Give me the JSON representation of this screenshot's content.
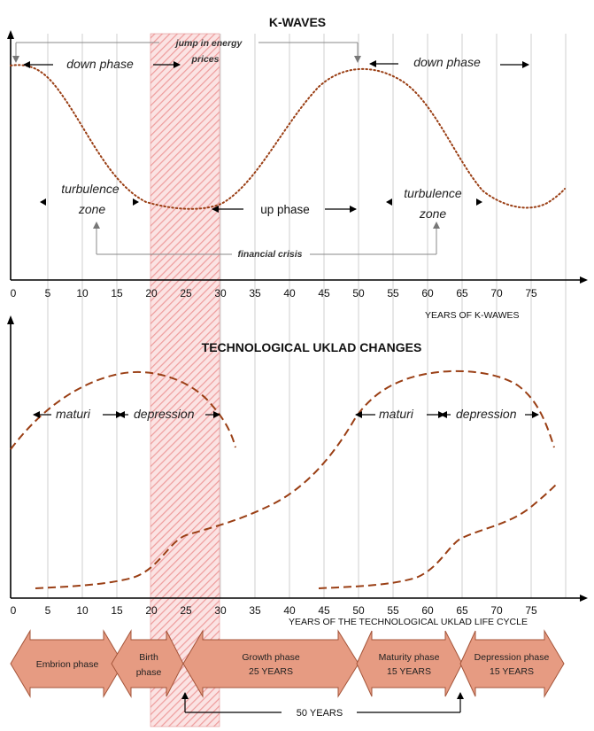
{
  "top": {
    "title": "K-WAVES",
    "x_ticks": [
      "0",
      "5",
      "10",
      "15",
      "20",
      "25",
      "30",
      "35",
      "40",
      "45",
      "50",
      "55",
      "60",
      "65",
      "70",
      "75"
    ],
    "x_axis_label": "YEARS OF K-WAWES",
    "jump_label_line1": "jump in energy",
    "jump_label_line2": "prices",
    "down_phase_left": "down phase",
    "down_phase_right": "down phase",
    "turbulence_left_line1": "turbulence",
    "turbulence_left_line2": "zone",
    "turbulence_right_line1": "turbulence",
    "turbulence_right_line2": "zone",
    "up_phase": "up phase",
    "financial_crisis": "financial crisis"
  },
  "bottom": {
    "title": "TECHNOLOGICAL UKLAD CHANGES",
    "x_ticks": [
      "0",
      "5",
      "10",
      "15",
      "20",
      "25",
      "30",
      "35",
      "40",
      "45",
      "50",
      "55",
      "60",
      "65",
      "70",
      "75"
    ],
    "x_axis_label": "YEARS OF THE TECHNOLOGICAL UKLAD LIFE CYCLE",
    "maturi_left": "maturi",
    "depression_left": "depression",
    "maturi_right": "maturi",
    "depression_right": "depression"
  },
  "phases": {
    "embrion": "Embrion phase",
    "birth_line1": "Birth",
    "birth_line2": "phase",
    "growth_line1": "Growth phase",
    "growth_line2": "25 YEARS",
    "maturity_line1": "Maturity phase",
    "maturity_line2": "15 YEARS",
    "depression_line1": "Depression phase",
    "depression_line2": "15 YEARS",
    "span_label": "50 YEARS"
  },
  "colors": {
    "curve": "#9a3f15",
    "phase_fill": "#e69b82",
    "hatch": "#ee9c9c",
    "gridline": "#cfcfcf"
  }
}
